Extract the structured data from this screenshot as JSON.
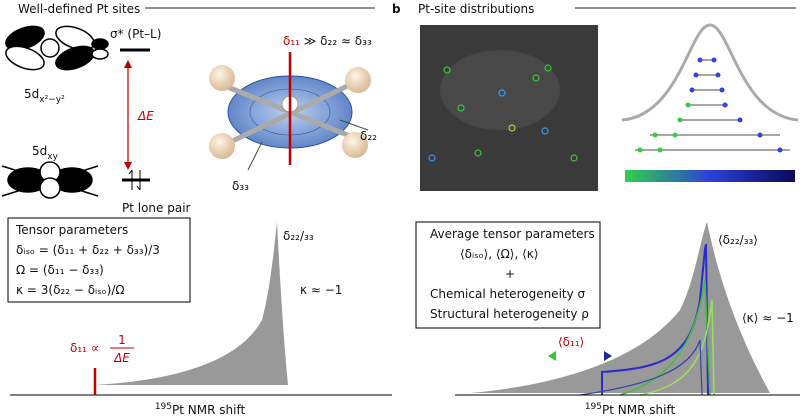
{
  "panel_a": {
    "title": "Well-defined Pt sites",
    "orbital_upper": {
      "main": "5d",
      "sub": "x²−y²"
    },
    "orbital_lower": {
      "main": "5d",
      "sub": "xy"
    },
    "antibonding": "σ* (Pt–L)",
    "gap": "ΔE",
    "lone_pair": "Pt lone pair",
    "tensor_relation": {
      "red": "δ₁₁",
      "rest": " ≫ δ₂₂ ≈ δ₃₃"
    },
    "axis_22": "δ₂₂",
    "axis_33": "δ₃₃",
    "box": {
      "title": "Tensor parameters",
      "lines": [
        "δᵢₛₒ = (δ₁₁ + δ₂₂ + δ₃₃)/3",
        "Ω = (δ₁₁ − δ₃₃)",
        "κ = 3(δ₂₂ − δᵢₛₒ)/Ω"
      ]
    },
    "peak_label": "δ₂₂/₃₃",
    "kappa": "κ ≈ −1",
    "d11": {
      "lhs": "δ₁₁ ∝",
      "num": "1",
      "den": "ΔE"
    },
    "x_label": {
      "sup": "195",
      "text": "Pt NMR shift"
    }
  },
  "panel_b": {
    "letter": "b",
    "title": "Pt-site distributions",
    "peak_label": "⟨δ₂₂/₃₃⟩",
    "box": {
      "title": "Average tensor parameters",
      "lines": [
        "⟨δᵢₛₒ⟩, ⟨Ω⟩, ⟨κ⟩",
        "+",
        "Chemical heterogeneity σ",
        "Structural heterogeneity ρ"
      ]
    },
    "kappa": "⟨κ⟩ ≈ −1",
    "d11": "⟨δ₁₁⟩",
    "x_label": {
      "sup": "195",
      "text": "Pt NMR shift"
    }
  }
}
